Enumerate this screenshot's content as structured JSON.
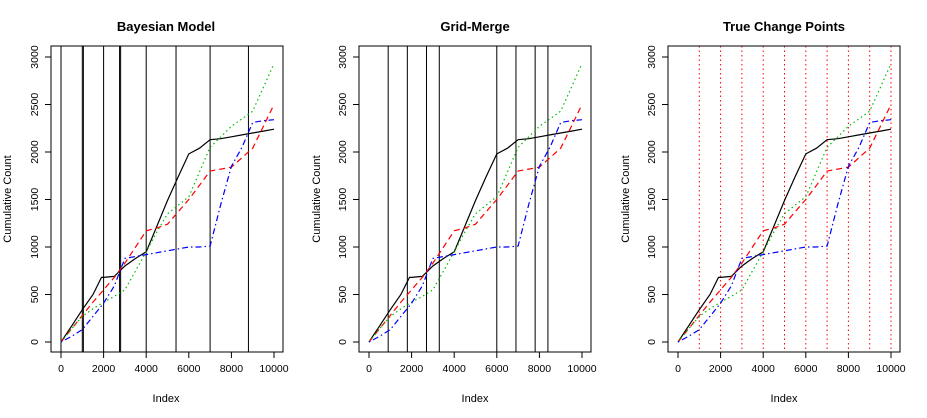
{
  "chart_data": [
    {
      "type": "line",
      "title": "Bayesian Model",
      "xlabel": "Index",
      "ylabel": "Cumulative Count",
      "xlim": [
        0,
        10000
      ],
      "ylim": [
        0,
        3000
      ],
      "xticks": [
        0,
        2000,
        4000,
        6000,
        8000,
        10000
      ],
      "yticks": [
        0,
        500,
        1000,
        1500,
        2000,
        2500,
        3000
      ],
      "grid": false,
      "changepoints": {
        "color": "#000000",
        "style": "solid",
        "x": [
          0,
          1000,
          1050,
          2000,
          2750,
          2800,
          4000,
          5400,
          7000,
          8800
        ]
      }
    },
    {
      "type": "line",
      "title": "Grid-Merge",
      "xlabel": "Index",
      "ylabel": "Cumulative Count",
      "xlim": [
        0,
        10000
      ],
      "ylim": [
        0,
        3000
      ],
      "xticks": [
        0,
        2000,
        4000,
        6000,
        8000,
        10000
      ],
      "yticks": [
        0,
        500,
        1000,
        1500,
        2000,
        2500,
        3000
      ],
      "grid": false,
      "changepoints": {
        "color": "#000000",
        "style": "solid",
        "x": [
          900,
          1800,
          2700,
          3300,
          6000,
          6900,
          7800,
          8400
        ]
      }
    },
    {
      "type": "line",
      "title": "True Change Points",
      "xlabel": "Index",
      "ylabel": "Cumulative Count",
      "xlim": [
        0,
        10000
      ],
      "ylim": [
        0,
        3000
      ],
      "xticks": [
        0,
        2000,
        4000,
        6000,
        8000,
        10000
      ],
      "yticks": [
        0,
        500,
        1000,
        1500,
        2000,
        2500,
        3000
      ],
      "grid": false,
      "changepoints": {
        "color": "#ff0000",
        "style": "dotted",
        "x": [
          1000,
          2000,
          3000,
          4000,
          5000,
          6000,
          7000,
          8000,
          9000,
          10000
        ]
      }
    }
  ],
  "series": [
    {
      "color": "#000000",
      "style": "solid",
      "x": [
        0,
        500,
        1000,
        1500,
        1900,
        2000,
        2500,
        3000,
        3500,
        4000,
        4500,
        5000,
        5500,
        6000,
        6500,
        7000,
        7500,
        8000,
        8500,
        9000,
        9500,
        10000
      ],
      "y": [
        0,
        170,
        340,
        500,
        680,
        680,
        690,
        800,
        880,
        950,
        1220,
        1490,
        1740,
        1980,
        2040,
        2130,
        2140,
        2160,
        2180,
        2200,
        2220,
        2240
      ]
    },
    {
      "color": "#ff0000",
      "style": "dashed",
      "x": [
        0,
        500,
        1000,
        1500,
        2000,
        2500,
        3000,
        3500,
        4000,
        4500,
        5000,
        5500,
        6000,
        6500,
        7000,
        7500,
        8000,
        8500,
        9000,
        9500,
        10000
      ],
      "y": [
        0,
        140,
        280,
        420,
        550,
        680,
        830,
        1000,
        1170,
        1200,
        1240,
        1370,
        1500,
        1650,
        1800,
        1820,
        1840,
        1940,
        2040,
        2270,
        2500
      ]
    },
    {
      "color": "#00bb00",
      "style": "dotted",
      "x": [
        0,
        500,
        1000,
        1500,
        2000,
        2500,
        3000,
        3500,
        4000,
        4500,
        5000,
        5500,
        6000,
        6500,
        7000,
        7500,
        8000,
        8500,
        9000,
        9500,
        10000
      ],
      "y": [
        0,
        140,
        270,
        350,
        420,
        480,
        550,
        750,
        950,
        1160,
        1350,
        1440,
        1530,
        1790,
        2050,
        2160,
        2270,
        2350,
        2430,
        2680,
        2930
      ]
    },
    {
      "color": "#0000ff",
      "style": "dashdot",
      "x": [
        0,
        500,
        1000,
        1500,
        2000,
        2500,
        3000,
        3500,
        4000,
        4500,
        5000,
        5500,
        6000,
        6500,
        7000,
        7500,
        8000,
        8500,
        9000,
        9500,
        10000
      ],
      "y": [
        0,
        60,
        130,
        270,
        410,
        590,
        880,
        900,
        920,
        940,
        960,
        980,
        1000,
        1000,
        1010,
        1450,
        1850,
        2050,
        2310,
        2330,
        2340
      ]
    }
  ]
}
